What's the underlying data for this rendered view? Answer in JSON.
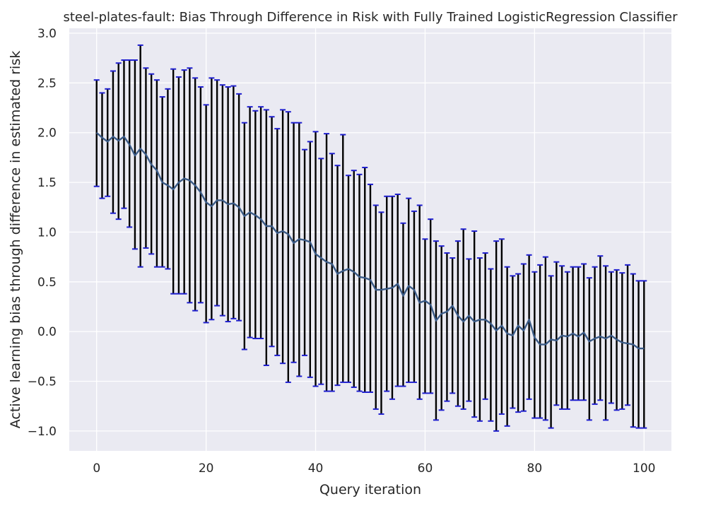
{
  "chart_data": {
    "type": "line",
    "title": "steel-plates-fault: Bias Through Difference in Risk with Fully Trained LogisticRegression Classifier",
    "xlabel": "Query iteration",
    "ylabel": "Active learning bias through difference in estimated risk",
    "xlim": [
      -5,
      105
    ],
    "ylim": [
      -1.2,
      3.05
    ],
    "x_ticks": [
      0,
      20,
      40,
      60,
      80,
      100
    ],
    "y_ticks": [
      -1.0,
      -0.5,
      0.0,
      0.5,
      1.0,
      1.5,
      2.0,
      2.5,
      3.0
    ],
    "x_tick_labels": [
      "0",
      "20",
      "40",
      "60",
      "80",
      "100"
    ],
    "y_tick_labels": [
      "−1.0",
      "−0.5",
      "0.0",
      "0.5",
      "1.0",
      "1.5",
      "2.0",
      "2.5",
      "3.0"
    ],
    "grid": true,
    "series": [
      {
        "x": [
          0,
          1,
          2,
          3,
          4,
          5,
          6,
          7,
          8,
          9,
          10,
          11,
          12,
          13,
          14,
          15,
          16,
          17,
          18,
          19,
          20,
          21,
          22,
          23,
          24,
          25,
          26,
          27,
          28,
          29,
          30,
          31,
          32,
          33,
          34,
          35,
          36,
          37,
          38,
          39,
          40,
          41,
          42,
          43,
          44,
          45,
          46,
          47,
          48,
          49,
          50,
          51,
          52,
          53,
          54,
          55,
          56,
          57,
          58,
          59,
          60,
          61,
          62,
          63,
          64,
          65,
          66,
          67,
          68,
          69,
          70,
          71,
          72,
          73,
          74,
          75,
          76,
          77,
          78,
          79,
          80,
          81,
          82,
          83,
          84,
          85,
          86,
          87,
          88,
          89,
          90,
          91,
          92,
          93,
          94,
          95,
          96,
          97,
          98,
          99,
          100
        ],
        "values": [
          2.0,
          1.95,
          1.91,
          1.96,
          1.92,
          1.96,
          1.88,
          1.77,
          1.84,
          1.78,
          1.68,
          1.62,
          1.5,
          1.47,
          1.43,
          1.5,
          1.54,
          1.52,
          1.47,
          1.4,
          1.3,
          1.26,
          1.32,
          1.32,
          1.28,
          1.29,
          1.25,
          1.16,
          1.2,
          1.17,
          1.13,
          1.06,
          1.06,
          0.99,
          1.01,
          0.98,
          0.89,
          0.93,
          0.92,
          0.9,
          0.78,
          0.74,
          0.7,
          0.68,
          0.58,
          0.61,
          0.63,
          0.6,
          0.55,
          0.54,
          0.52,
          0.42,
          0.42,
          0.43,
          0.44,
          0.48,
          0.36,
          0.46,
          0.42,
          0.29,
          0.31,
          0.27,
          0.11,
          0.18,
          0.2,
          0.26,
          0.16,
          0.1,
          0.16,
          0.1,
          0.12,
          0.12,
          0.08,
          0.01,
          0.06,
          -0.02,
          -0.04,
          0.06,
          0.01,
          0.12,
          -0.06,
          -0.13,
          -0.13,
          -0.08,
          -0.09,
          -0.04,
          -0.05,
          -0.02,
          -0.05,
          -0.01,
          -0.1,
          -0.07,
          -0.05,
          -0.07,
          -0.04,
          -0.08,
          -0.11,
          -0.12,
          -0.13,
          -0.17,
          -0.17
        ],
        "upper": [
          2.53,
          2.4,
          2.44,
          2.62,
          2.7,
          2.73,
          2.73,
          2.73,
          2.88,
          2.65,
          2.59,
          2.53,
          2.36,
          2.44,
          2.64,
          2.56,
          2.63,
          2.65,
          2.55,
          2.46,
          2.28,
          2.55,
          2.53,
          2.48,
          2.46,
          2.47,
          2.39,
          2.1,
          2.26,
          2.22,
          2.26,
          2.23,
          2.16,
          2.04,
          2.23,
          2.21,
          2.1,
          2.1,
          1.83,
          1.91,
          2.01,
          1.74,
          1.99,
          1.79,
          1.67,
          1.98,
          1.57,
          1.62,
          1.58,
          1.65,
          1.48,
          1.27,
          1.2,
          1.36,
          1.36,
          1.38,
          1.09,
          1.34,
          1.21,
          1.27,
          0.93,
          1.13,
          0.91,
          0.86,
          0.79,
          0.74,
          0.91,
          1.03,
          0.73,
          1.01,
          0.74,
          0.79,
          0.63,
          0.91,
          0.93,
          0.65,
          0.56,
          0.58,
          0.68,
          0.77,
          0.6,
          0.67,
          0.75,
          0.56,
          0.7,
          0.66,
          0.6,
          0.65,
          0.65,
          0.68,
          0.54,
          0.65,
          0.76,
          0.66,
          0.6,
          0.62,
          0.59,
          0.67,
          0.58,
          0.51,
          0.51
        ],
        "lower": [
          1.46,
          1.34,
          1.36,
          1.19,
          1.13,
          1.24,
          1.05,
          0.83,
          0.65,
          0.84,
          0.78,
          0.65,
          0.65,
          0.63,
          0.38,
          0.38,
          0.38,
          0.29,
          0.21,
          0.29,
          0.09,
          0.12,
          0.26,
          0.16,
          0.1,
          0.13,
          0.11,
          -0.18,
          -0.06,
          -0.07,
          -0.07,
          -0.34,
          -0.15,
          -0.24,
          -0.32,
          -0.51,
          -0.31,
          -0.45,
          -0.24,
          -0.46,
          -0.55,
          -0.53,
          -0.6,
          -0.6,
          -0.54,
          -0.51,
          -0.51,
          -0.56,
          -0.6,
          -0.61,
          -0.61,
          -0.78,
          -0.83,
          -0.6,
          -0.68,
          -0.55,
          -0.55,
          -0.51,
          -0.51,
          -0.68,
          -0.62,
          -0.62,
          -0.89,
          -0.79,
          -0.7,
          -0.62,
          -0.75,
          -0.78,
          -0.7,
          -0.86,
          -0.9,
          -0.68,
          -0.9,
          -1.0,
          -0.83,
          -0.95,
          -0.77,
          -0.81,
          -0.8,
          -0.68,
          -0.87,
          -0.87,
          -0.89,
          -0.97,
          -0.74,
          -0.78,
          -0.78,
          -0.69,
          -0.69,
          -0.69,
          -0.89,
          -0.73,
          -0.69,
          -0.89,
          -0.72,
          -0.79,
          -0.78,
          -0.74,
          -0.96,
          -0.97,
          -0.97
        ]
      }
    ],
    "colors": {
      "line": "#3a5a86",
      "errorbar": "#000000",
      "cap": "#1f1fcf",
      "plot_background": "#eaeaf2",
      "grid": "#ffffff"
    }
  }
}
